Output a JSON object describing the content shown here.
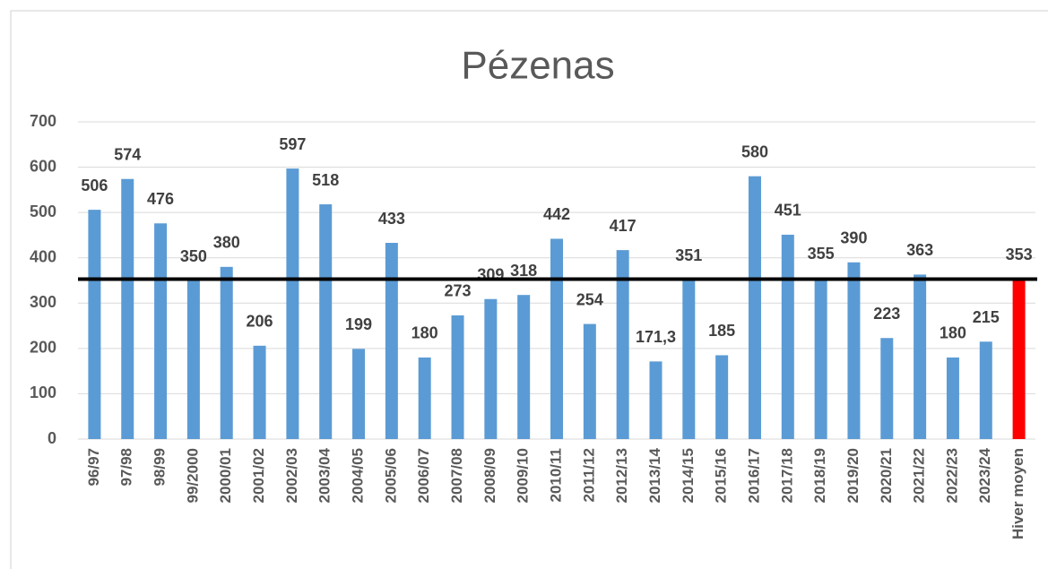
{
  "chart_data": {
    "type": "bar",
    "title": "Pézenas",
    "categories": [
      "96/97",
      "97/98",
      "98/99",
      "99/2000",
      "2000/01",
      "2001/02",
      "2002/03",
      "2003/04",
      "2004/05",
      "2005/06",
      "2006/07",
      "2007/08",
      "2008/09",
      "2009/10",
      "2010/11",
      "2011/12",
      "2012/13",
      "2013/14",
      "2014/15",
      "2015/16",
      "2016/17",
      "2017/18",
      "2018/19",
      "2019/20",
      "2020/21",
      "2021/22",
      "2022/23",
      "2023/24",
      "Hiver moyen"
    ],
    "values": [
      506,
      574,
      476,
      350,
      380,
      206,
      597,
      518,
      199,
      433,
      180,
      273,
      309,
      318,
      442,
      254,
      417,
      171.3,
      351,
      185,
      580,
      451,
      355,
      390,
      223,
      363,
      180,
      215,
      353
    ],
    "value_labels": [
      "506",
      "574",
      "476",
      "350",
      "380",
      "206",
      "597",
      "518",
      "199",
      "433",
      "180",
      "273",
      "309",
      "318",
      "442",
      "254",
      "417",
      "171,3",
      "351",
      "185",
      "580",
      "451",
      "355",
      "390",
      "223",
      "363",
      "180",
      "215",
      "353"
    ],
    "colors": [
      "#5b9bd5",
      "#5b9bd5",
      "#5b9bd5",
      "#5b9bd5",
      "#5b9bd5",
      "#5b9bd5",
      "#5b9bd5",
      "#5b9bd5",
      "#5b9bd5",
      "#5b9bd5",
      "#5b9bd5",
      "#5b9bd5",
      "#5b9bd5",
      "#5b9bd5",
      "#5b9bd5",
      "#5b9bd5",
      "#5b9bd5",
      "#5b9bd5",
      "#5b9bd5",
      "#5b9bd5",
      "#5b9bd5",
      "#5b9bd5",
      "#5b9bd5",
      "#5b9bd5",
      "#5b9bd5",
      "#5b9bd5",
      "#5b9bd5",
      "#5b9bd5",
      "#ff0000"
    ],
    "reference_line": {
      "value": 353,
      "color": "#000000"
    },
    "ylim": [
      0,
      700
    ],
    "yticks": [
      0,
      100,
      200,
      300,
      400,
      500,
      600,
      700
    ],
    "grid": true
  }
}
